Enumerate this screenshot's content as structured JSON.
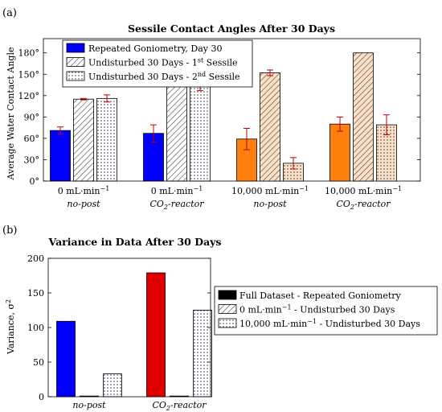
{
  "colors": {
    "blue": "#0000ff",
    "orange": "#ff7f0e",
    "red": "#e00000",
    "hatch": "#444444",
    "dots": "#223355"
  },
  "chart_data": [
    {
      "panel": "(a)",
      "type": "bar",
      "title": "Sessile Contact Angles After 30 Days",
      "ylabel": "Average Water Contact Angle",
      "ylim": [
        0,
        200
      ],
      "yticks": [
        "0°",
        "30°",
        "60°",
        "90°",
        "120°",
        "150°",
        "180°"
      ],
      "categories": [
        {
          "line1": "0 mL·min",
          "line1_sup": "−1",
          "line2": "no-post",
          "line2_sub": ""
        },
        {
          "line1": "0 mL·min",
          "line1_sup": "−1",
          "line2": "CO",
          "line2_sub": "2",
          "line2_tail": "-reactor"
        },
        {
          "line1": "10,000 mL·min",
          "line1_sup": "−1",
          "line2": "no-post",
          "line2_sub": ""
        },
        {
          "line1": "10,000 mL·min",
          "line1_sup": "−1",
          "line2": "CO",
          "line2_sub": "2",
          "line2_tail": "-reactor"
        }
      ],
      "series": [
        {
          "name": "Repeated Goniometry, Day 30",
          "pattern": "solid",
          "values": [
            71,
            67,
            59,
            80
          ],
          "errors": [
            5,
            12,
            15,
            10
          ]
        },
        {
          "name": "Undisturbed 30 Days - 1",
          "name_sup": "st",
          "name_tail": " Sessile",
          "pattern": "hatch",
          "values": [
            115,
            136,
            152,
            180
          ],
          "errors": [
            1,
            1,
            4,
            0
          ]
        },
        {
          "name": "Undisturbed 30 Days - 2",
          "name_sup": "nd",
          "name_tail": " Sessile",
          "pattern": "dots",
          "values": [
            116,
            133,
            25,
            79
          ],
          "errors": [
            5,
            6,
            8,
            14
          ]
        }
      ],
      "legend": "top-left",
      "grid": false
    },
    {
      "panel": "(b)",
      "type": "bar",
      "title": "Variance in Data After 30 Days",
      "ylabel": "Variance, σ",
      "ylabel_sup": "2",
      "ylim": [
        0,
        200
      ],
      "yticks": [
        "0",
        "50",
        "100",
        "150",
        "200"
      ],
      "categories": [
        {
          "line1": "no-post",
          "line1_sub": ""
        },
        {
          "line1": "CO",
          "line1_sub": "2",
          "line1_tail": "-reactor"
        }
      ],
      "series": [
        {
          "name": "Full Dataset - Repeated Goniometry",
          "pattern": "solid",
          "values": [
            109,
            179
          ]
        },
        {
          "name": "0 mL·min",
          "name_sup": "−1",
          "name_tail": " - Undisturbed 30 Days",
          "pattern": "hatch",
          "values": [
            1,
            1
          ]
        },
        {
          "name": "10,000 mL·min",
          "name_sup": "−1",
          "name_tail": " - Undisturbed 30 Days",
          "pattern": "dots",
          "values": [
            33,
            125
          ]
        }
      ],
      "legend": "right",
      "grid": false
    }
  ]
}
